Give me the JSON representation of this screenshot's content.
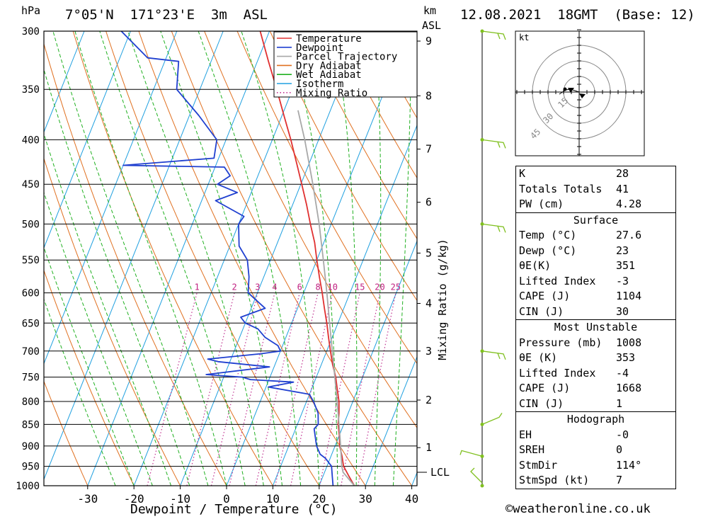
{
  "header": {
    "location": "7°05'N  171°23'E  3m  ASL",
    "datetime": "12.08.2021  18GMT  (Base: 12)",
    "unit_hpa": "hPa",
    "unit_km": "km",
    "unit_asl": "ASL"
  },
  "legend": [
    {
      "label": "Temperature",
      "color": "#e03030",
      "style": "solid"
    },
    {
      "label": "Dewpoint",
      "color": "#2040d0",
      "style": "solid"
    },
    {
      "label": "Parcel Trajectory",
      "color": "#a8a8a8",
      "style": "solid"
    },
    {
      "label": "Dry Adiabat",
      "color": "#e07020",
      "style": "solid"
    },
    {
      "label": "Wet Adiabat",
      "color": "#20b020",
      "style": "solid"
    },
    {
      "label": "Isotherm",
      "color": "#20a0e0",
      "style": "solid"
    },
    {
      "label": "Mixing Ratio",
      "color": "#c03090",
      "style": "dotted"
    }
  ],
  "chart_data": {
    "type": "line",
    "title": "",
    "xlabel": "Dewpoint / Temperature (°C)",
    "ylabel": "",
    "x_ticks": [
      -30,
      -20,
      -10,
      0,
      10,
      20,
      30,
      40
    ],
    "pressure_levels": [
      300,
      350,
      400,
      450,
      500,
      550,
      600,
      650,
      700,
      750,
      800,
      850,
      900,
      950,
      1000
    ],
    "km_ticks": [
      {
        "km": "1",
        "p": 904
      },
      {
        "km": "2",
        "p": 797
      },
      {
        "km": "3",
        "p": 700
      },
      {
        "km": "4",
        "p": 617
      },
      {
        "km": "5",
        "p": 540
      },
      {
        "km": "6",
        "p": 472
      },
      {
        "km": "7",
        "p": 410
      },
      {
        "km": "8",
        "p": 356
      },
      {
        "km": "9",
        "p": 308
      }
    ],
    "lcl_label": "LCL",
    "lcl_pressure": 965,
    "mixing_ratio_axis_label": "Mixing Ratio (g/kg)",
    "mixing_ratio_labels": [
      "1",
      "2",
      "3",
      "4",
      "6",
      "8",
      "10",
      "15",
      "20",
      "25"
    ],
    "mixing_ratio_values": [
      1,
      2,
      3,
      4,
      6,
      8,
      10,
      15,
      20,
      25
    ],
    "series": [
      {
        "name": "Temperature",
        "color": "#e03030",
        "points": [
          [
            1000,
            27.6
          ],
          [
            975,
            25.6
          ],
          [
            950,
            23.6
          ],
          [
            925,
            22.4
          ],
          [
            900,
            21.0
          ],
          [
            875,
            20.0
          ],
          [
            850,
            18.8
          ],
          [
            825,
            18.0
          ],
          [
            800,
            17.0
          ],
          [
            775,
            15.6
          ],
          [
            750,
            14.2
          ],
          [
            725,
            12.4
          ],
          [
            700,
            10.8
          ],
          [
            675,
            9.2
          ],
          [
            650,
            7.6
          ],
          [
            625,
            5.8
          ],
          [
            600,
            4.0
          ],
          [
            575,
            2.0
          ],
          [
            550,
            0.0
          ],
          [
            525,
            -2.0
          ],
          [
            500,
            -4.5
          ],
          [
            475,
            -7.0
          ],
          [
            450,
            -9.8
          ],
          [
            425,
            -12.8
          ],
          [
            400,
            -16.0
          ],
          [
            375,
            -19.6
          ],
          [
            350,
            -23.4
          ],
          [
            325,
            -27.6
          ],
          [
            300,
            -32.0
          ]
        ]
      },
      {
        "name": "Dewpoint",
        "color": "#2040d0",
        "points": [
          [
            1000,
            23.0
          ],
          [
            975,
            22.0
          ],
          [
            950,
            21.0
          ],
          [
            930,
            19.0
          ],
          [
            920,
            17.5
          ],
          [
            900,
            16.0
          ],
          [
            860,
            14.0
          ],
          [
            850,
            14.5
          ],
          [
            825,
            13.5
          ],
          [
            800,
            11.5
          ],
          [
            785,
            10.0
          ],
          [
            770,
            0.5
          ],
          [
            760,
            5.5
          ],
          [
            755,
            -4.0
          ],
          [
            750,
            -6.0
          ],
          [
            745,
            -14.0
          ],
          [
            730,
            -1.0
          ],
          [
            720,
            -12.5
          ],
          [
            715,
            -15.0
          ],
          [
            705,
            -4.0
          ],
          [
            700,
            0.0
          ],
          [
            690,
            -1.0
          ],
          [
            675,
            -4.5
          ],
          [
            660,
            -6.8
          ],
          [
            650,
            -10.0
          ],
          [
            640,
            -11.5
          ],
          [
            625,
            -7.0
          ],
          [
            600,
            -12.0
          ],
          [
            575,
            -13.2
          ],
          [
            550,
            -15.0
          ],
          [
            530,
            -18.0
          ],
          [
            500,
            -20.0
          ],
          [
            490,
            -19.5
          ],
          [
            470,
            -27.0
          ],
          [
            460,
            -23.0
          ],
          [
            450,
            -28.0
          ],
          [
            440,
            -26.0
          ],
          [
            430,
            -28.0
          ],
          [
            428,
            -50.0
          ],
          [
            420,
            -31.0
          ],
          [
            400,
            -32.0
          ],
          [
            375,
            -38.0
          ],
          [
            350,
            -45.0
          ],
          [
            325,
            -47.0
          ],
          [
            322,
            -54.0
          ],
          [
            300,
            -62.0
          ]
        ]
      },
      {
        "name": "Parcel Trajectory",
        "color": "#a8a8a8",
        "points": [
          [
            1000,
            27.6
          ],
          [
            965,
            24.0
          ],
          [
            950,
            23.2
          ],
          [
            900,
            21.2
          ],
          [
            850,
            19.0
          ],
          [
            800,
            16.6
          ],
          [
            750,
            14.0
          ],
          [
            700,
            11.2
          ],
          [
            650,
            8.2
          ],
          [
            600,
            5.0
          ],
          [
            550,
            1.4
          ],
          [
            500,
            -2.6
          ],
          [
            450,
            -7.4
          ],
          [
            400,
            -13.0
          ],
          [
            370,
            -17.0
          ]
        ]
      }
    ],
    "hodograph": {
      "unit": "kt",
      "ring_labels": [
        "15",
        "30",
        "45"
      ]
    },
    "wind_barbs_color": "#80c020"
  },
  "indices": {
    "general": [
      {
        "label": "K",
        "value": "28"
      },
      {
        "label": "Totals Totals",
        "value": "41"
      },
      {
        "label": "PW (cm)",
        "value": "4.28"
      }
    ],
    "surface_title": "Surface",
    "surface": [
      {
        "label": "Temp (°C)",
        "value": "27.6"
      },
      {
        "label": "Dewp (°C)",
        "value": "23"
      },
      {
        "label": "θE(K)",
        "value": "351"
      },
      {
        "label": "Lifted Index",
        "value": "-3"
      },
      {
        "label": "CAPE (J)",
        "value": "1104"
      },
      {
        "label": "CIN (J)",
        "value": "30"
      }
    ],
    "mu_title": "Most Unstable",
    "mu": [
      {
        "label": "Pressure (mb)",
        "value": "1008"
      },
      {
        "label": "θE (K)",
        "value": "353"
      },
      {
        "label": "Lifted Index",
        "value": "-4"
      },
      {
        "label": "CAPE (J)",
        "value": "1668"
      },
      {
        "label": "CIN (J)",
        "value": "1"
      }
    ],
    "hodo_title": "Hodograph",
    "hodo": [
      {
        "label": "EH",
        "value": "-0"
      },
      {
        "label": "SREH",
        "value": "0"
      },
      {
        "label": "StmDir",
        "value": "114°"
      },
      {
        "label": "StmSpd (kt)",
        "value": "7"
      }
    ]
  },
  "footer": "©weatheronline.co.uk"
}
